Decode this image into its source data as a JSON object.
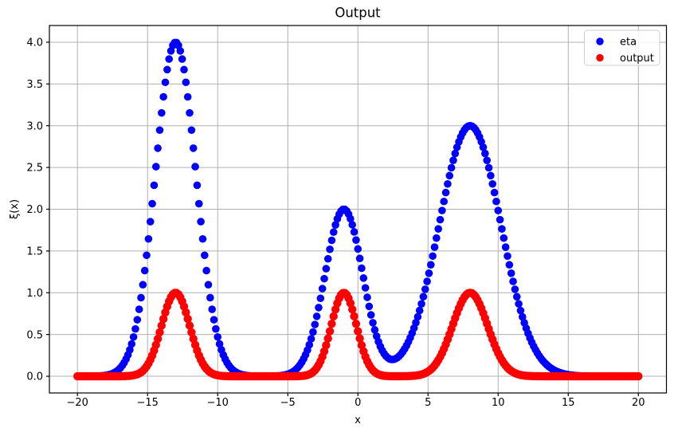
{
  "chart_data": {
    "type": "scatter",
    "title": "Output",
    "xlabel": "x",
    "ylabel": "ξ(x)",
    "xlim": [
      -22,
      22
    ],
    "ylim": [
      -0.2,
      4.2
    ],
    "grid": true,
    "xticks": {
      "values": [
        -20,
        -15,
        -10,
        -5,
        0,
        5,
        10,
        15,
        20
      ],
      "labels": [
        "−20",
        "−15",
        "−10",
        "−5",
        "0",
        "5",
        "10",
        "15",
        "20"
      ]
    },
    "yticks": {
      "values": [
        0.0,
        0.5,
        1.0,
        1.5,
        2.0,
        2.5,
        3.0,
        3.5,
        4.0
      ],
      "labels": [
        "0.0",
        "0.5",
        "1.0",
        "1.5",
        "2.0",
        "2.5",
        "3.0",
        "3.5",
        "4.0"
      ]
    },
    "sampling": {
      "x_start": -20,
      "x_end": 20,
      "n_points": 301
    },
    "series": [
      {
        "name": "eta",
        "color": "#0000ff",
        "marker": "circle",
        "marker_radius_px": 4.8,
        "model": "sum_of_gaussians",
        "peaks": [
          {
            "amplitude": 4.0,
            "center": -13.0,
            "sigma": 1.45
          },
          {
            "amplitude": 2.0,
            "center": -1.0,
            "sigma": 1.35
          },
          {
            "amplitude": 3.0,
            "center": 8.0,
            "sigma": 2.2
          }
        ]
      },
      {
        "name": "output",
        "color": "#ff0000",
        "marker": "circle",
        "marker_radius_px": 5.2,
        "model": "sum_of_gaussians",
        "peaks": [
          {
            "amplitude": 1.0,
            "center": -13.0,
            "sigma": 1.0
          },
          {
            "amplitude": 1.0,
            "center": -1.0,
            "sigma": 0.9
          },
          {
            "amplitude": 1.0,
            "center": 8.0,
            "sigma": 1.25
          }
        ]
      }
    ],
    "legend": {
      "position": "upper right",
      "entries": [
        "eta",
        "output"
      ]
    },
    "colors": {
      "grid": "#b0b0b0",
      "spine": "#000000",
      "text": "#000000"
    }
  }
}
